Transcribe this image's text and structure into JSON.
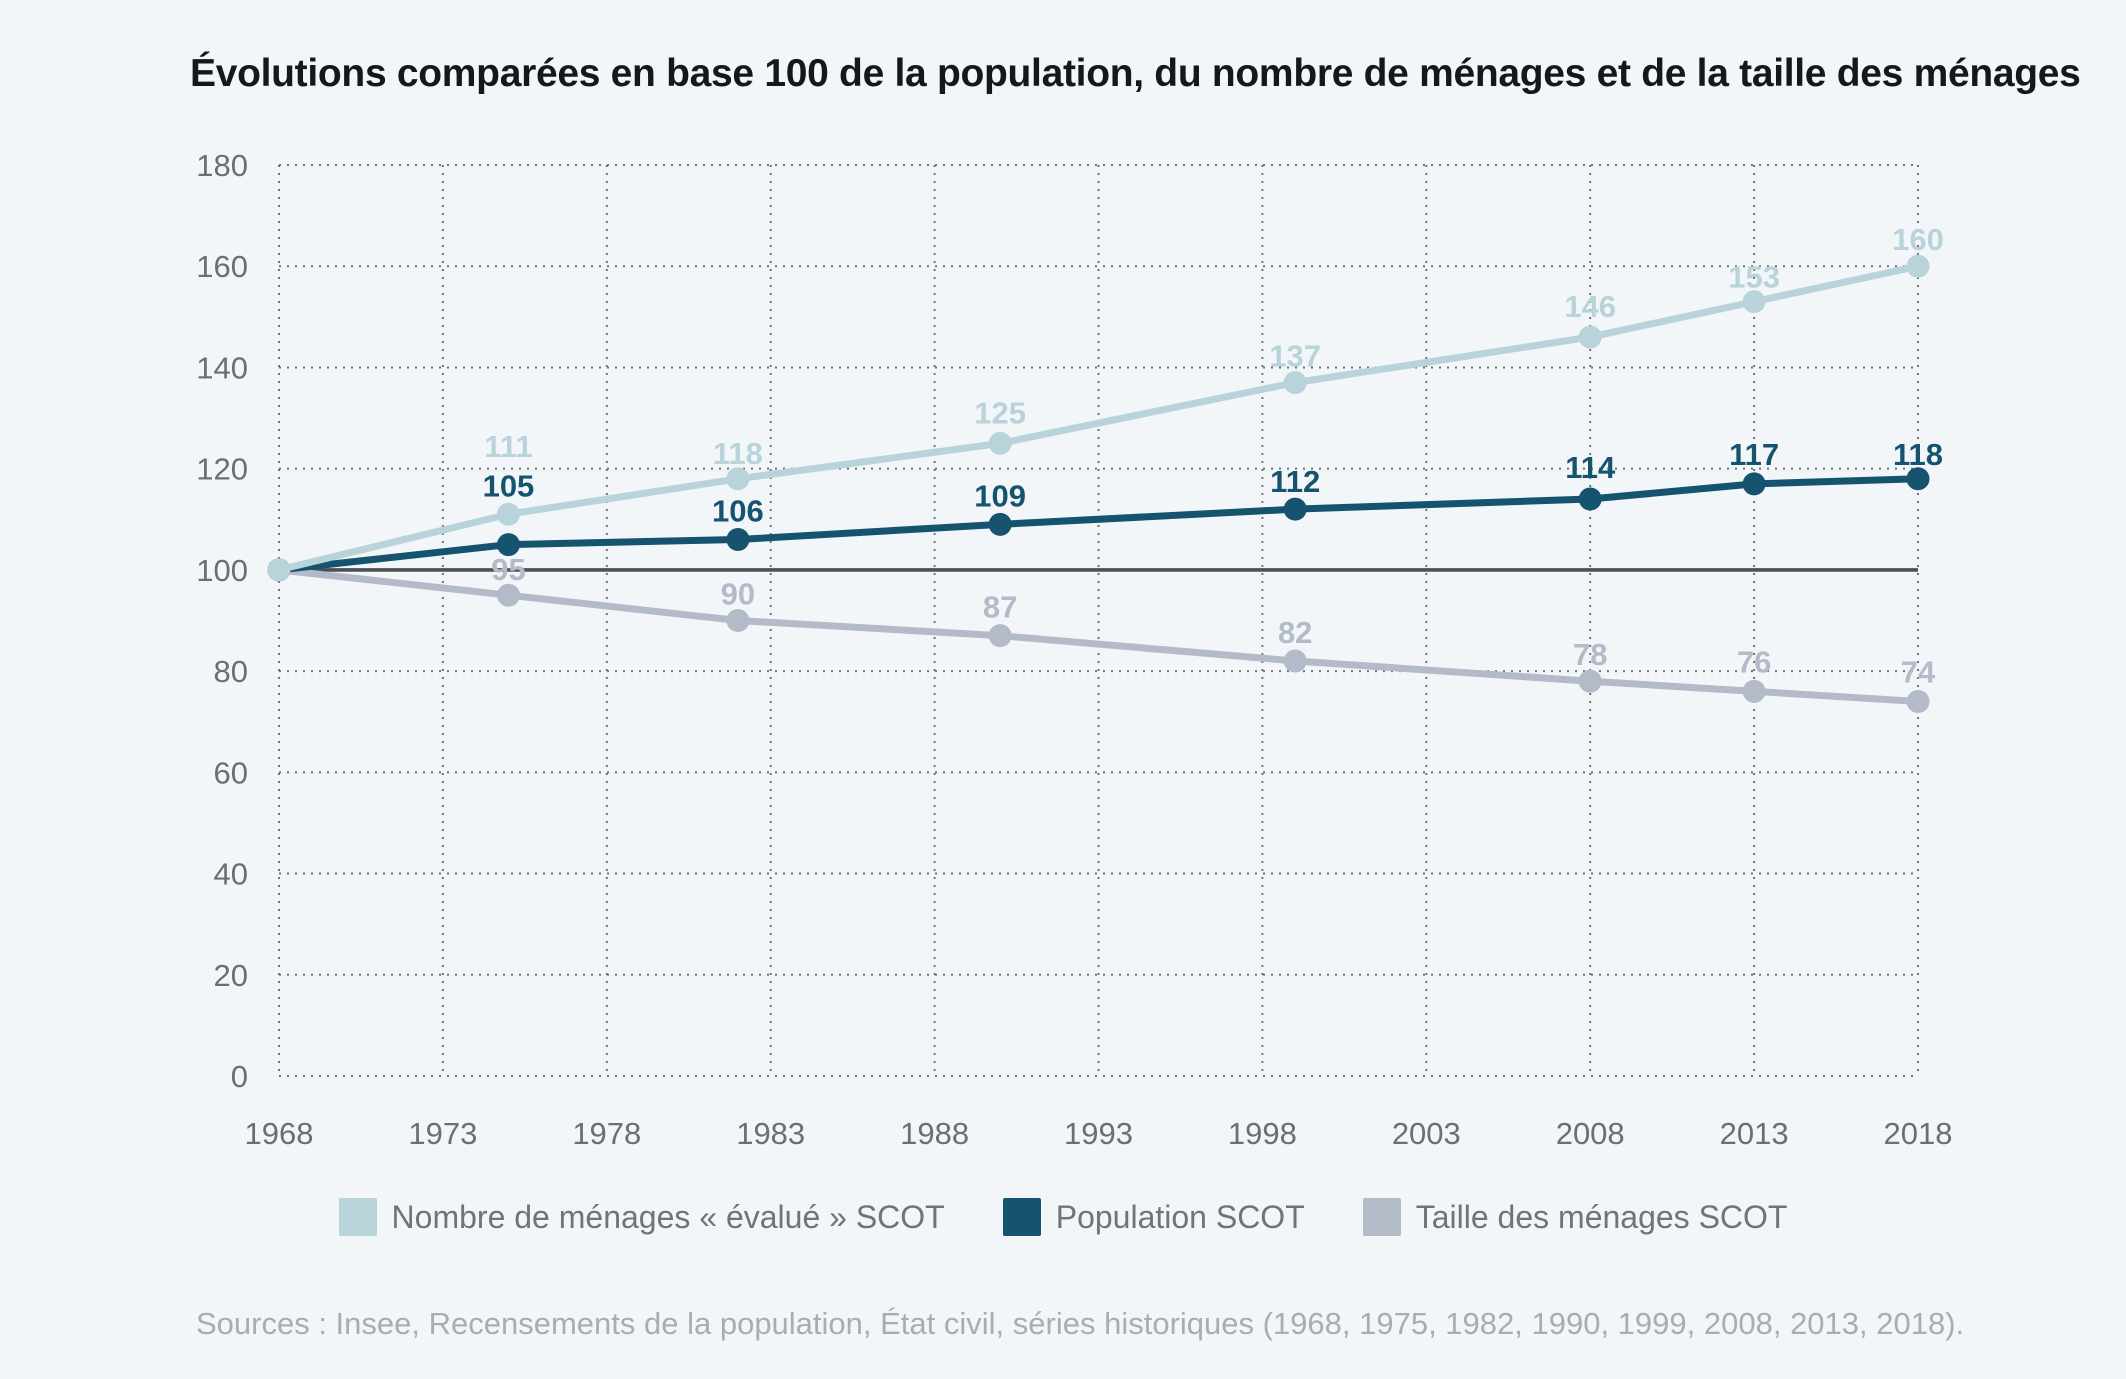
{
  "title": "Évolutions comparées en base 100 de la population, du nombre de ménages et de la taille des ménages",
  "sources": "Sources : Insee, Recensements de la population, État civil, séries historiques (1968, 1975, 1982, 1990, 1999, 2008, 2013, 2018).",
  "colors": {
    "background": "#f3f6f8",
    "grid": "#6f7276",
    "baseline": "#4c5054",
    "axis_text": "#6b6f73",
    "title_text": "#14181b",
    "legend_text": "#6c747c",
    "sources_text": "#a9adb0",
    "series_menages": "#b8d3da",
    "series_population": "#15536f",
    "series_taille": "#b2bbc7"
  },
  "legend": {
    "items": [
      {
        "label": "Nombre de ménages « évalué » SCOT",
        "color": "#b8d3da"
      },
      {
        "label": "Population SCOT",
        "color": "#15536f"
      },
      {
        "label": "Taille des ménages SCOT",
        "color": "#b2bbc7"
      }
    ]
  },
  "chart_data": {
    "type": "line",
    "title": "Évolutions comparées en base 100 de la population, du nombre de ménages et de la taille des ménages",
    "x": [
      1968,
      1975,
      1982,
      1990,
      1999,
      2008,
      2013,
      2018
    ],
    "xlim": [
      1968,
      2018
    ],
    "ylim": [
      0,
      180
    ],
    "x_axis_ticks": [
      1968,
      1973,
      1978,
      1983,
      1988,
      1993,
      1998,
      2003,
      2008,
      2013,
      2018
    ],
    "y_axis_ticks": [
      0,
      20,
      40,
      60,
      80,
      100,
      120,
      140,
      160,
      180
    ],
    "grid": "dotted",
    "legend_position": "bottom",
    "baseline_value": 100,
    "show_labels_from_index": 1,
    "series": [
      {
        "name": "Nombre de ménages « évalué » SCOT",
        "color": "#b8d3da",
        "values": [
          100,
          111,
          118,
          125,
          137,
          146,
          153,
          160
        ],
        "label_dy": [
          0,
          -57,
          -15,
          -20,
          -16,
          -20,
          -14,
          -16
        ]
      },
      {
        "name": "Population SCOT",
        "color": "#15536f",
        "values": [
          100,
          105,
          106,
          109,
          112,
          114,
          117,
          118
        ],
        "label_dy": [
          0,
          -48,
          -18,
          -18,
          -17,
          -21,
          -19,
          -14
        ]
      },
      {
        "name": "Taille des ménages SCOT",
        "color": "#b2bbc7",
        "values": [
          100,
          95,
          90,
          87,
          82,
          78,
          76,
          74
        ],
        "label_dy": [
          0,
          -15,
          -16,
          -18,
          -18,
          -16,
          -19,
          -19
        ]
      }
    ]
  }
}
